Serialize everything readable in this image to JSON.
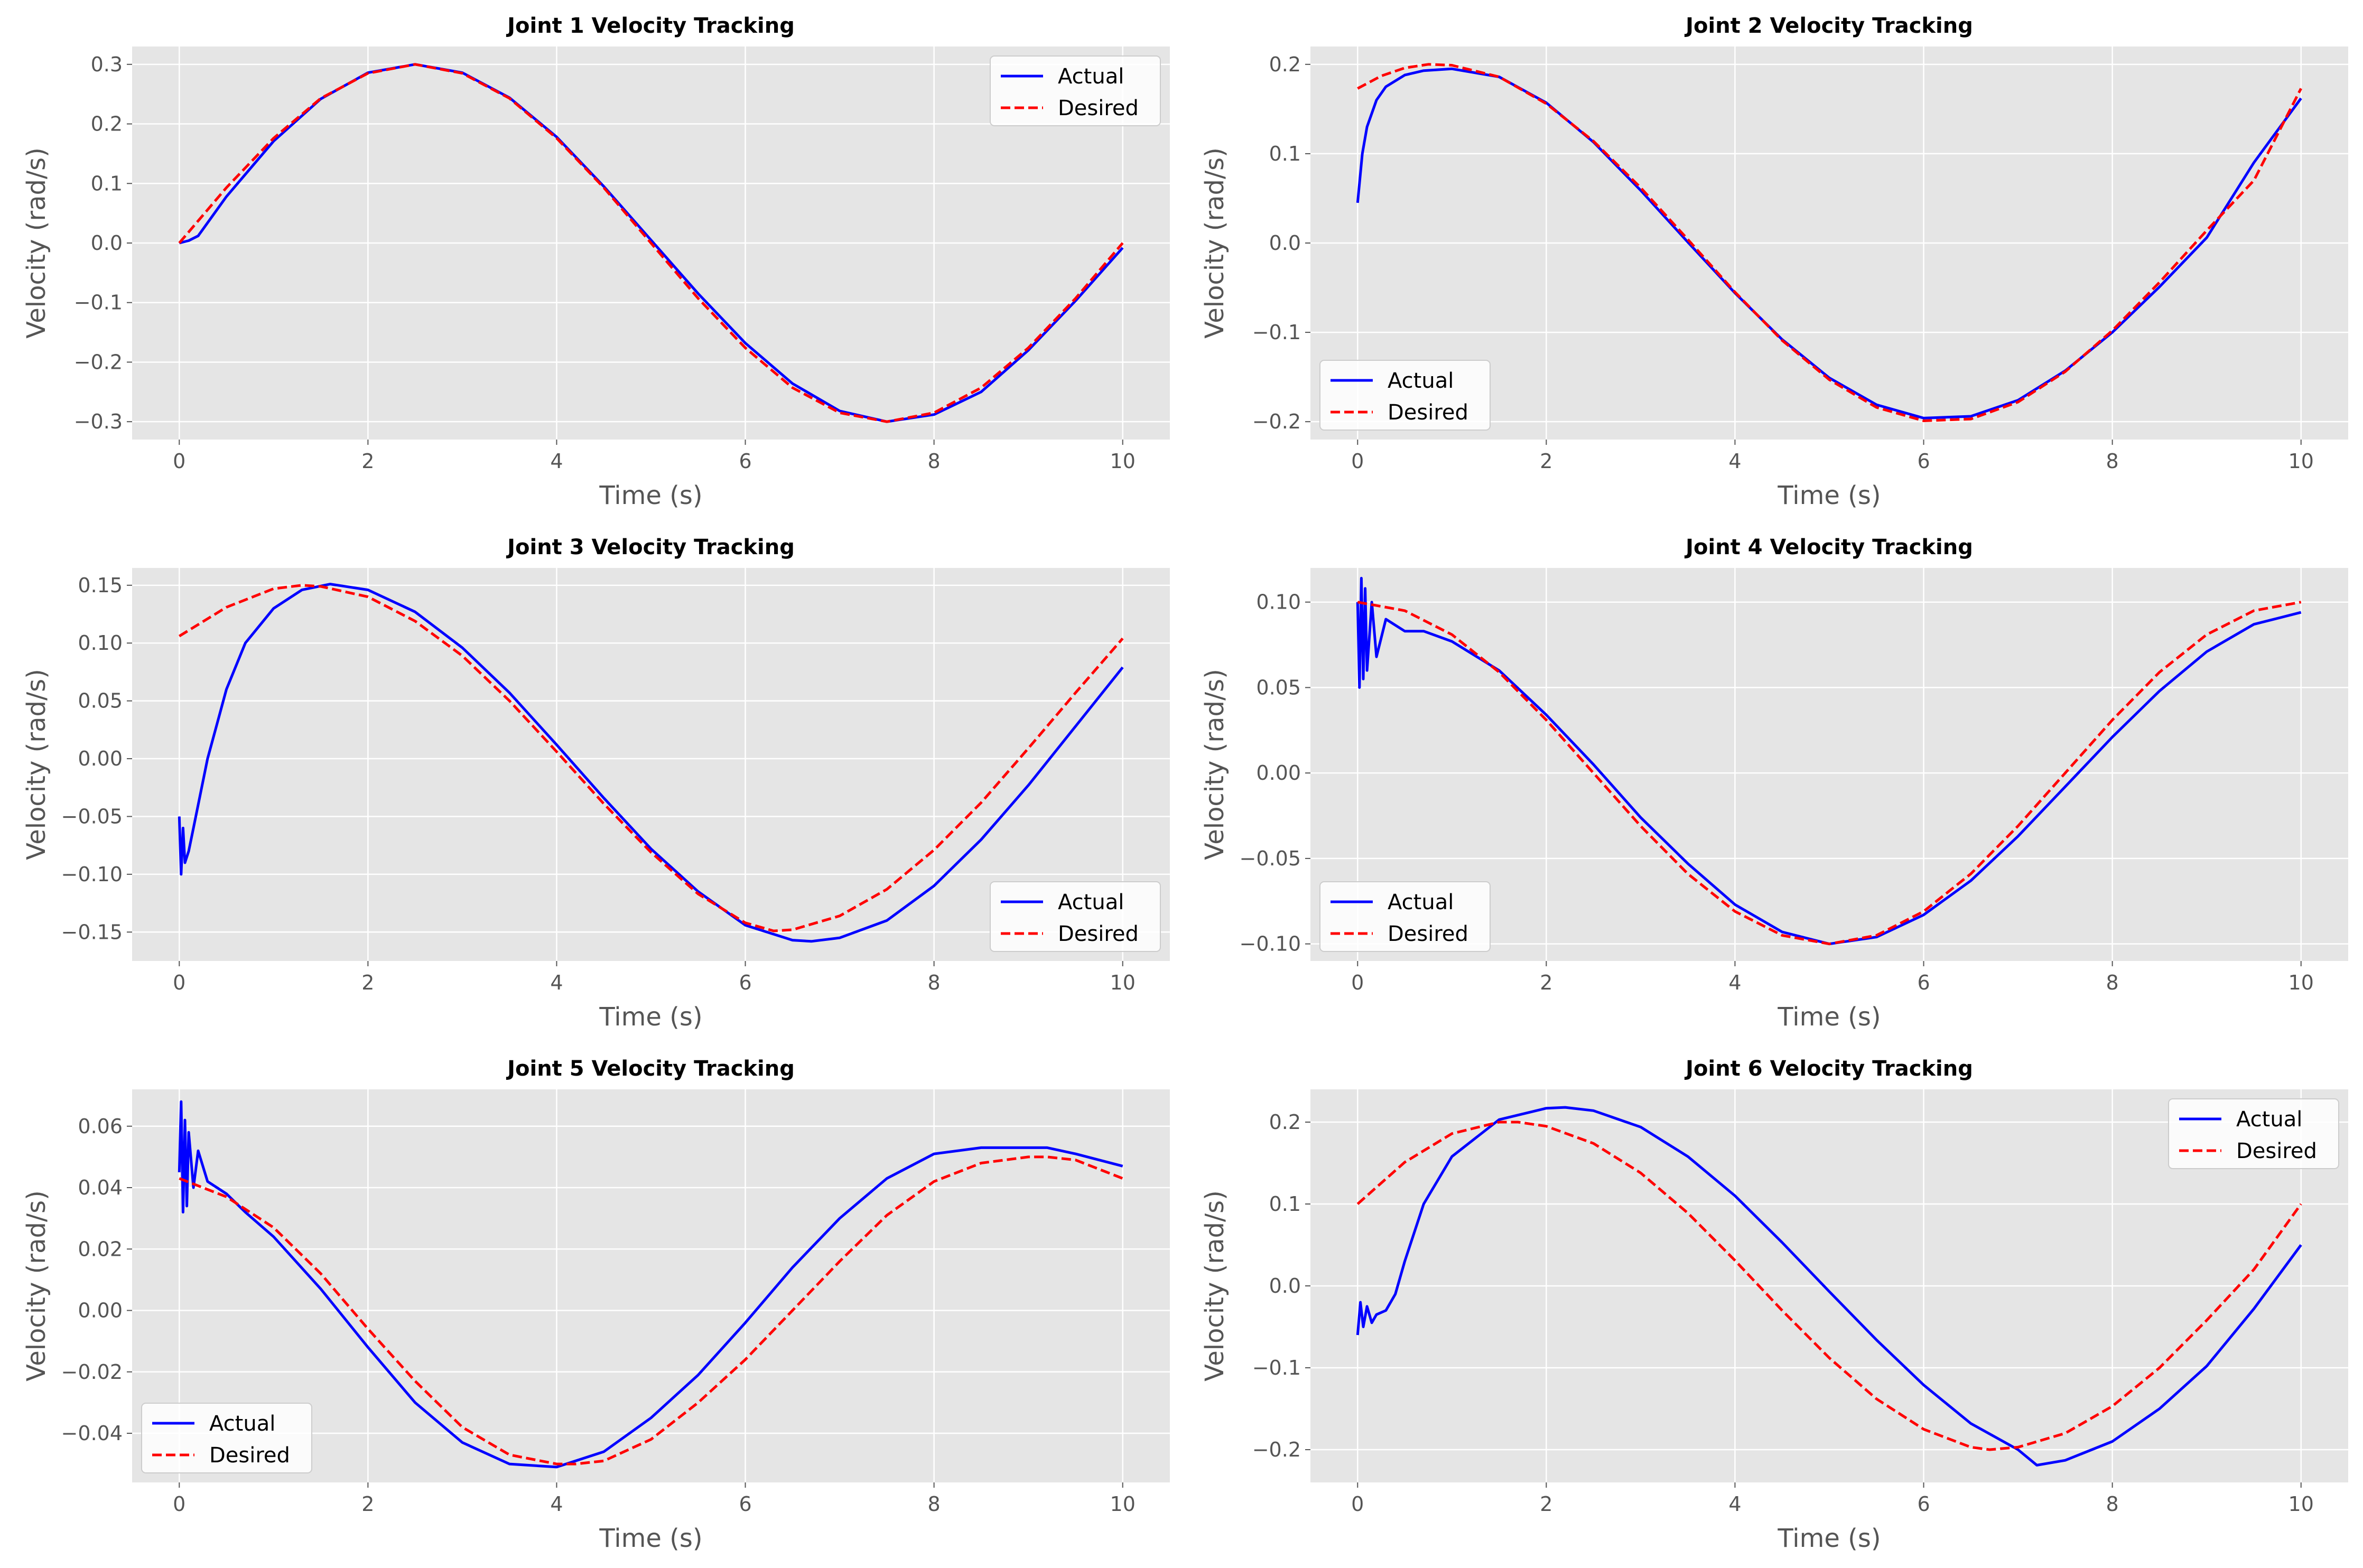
{
  "chart_data": [
    {
      "type": "line",
      "title": "Joint 1 Velocity Tracking",
      "xlabel": "Time (s)",
      "ylabel": "Velocity (rad/s)",
      "xlim": [
        -0.5,
        10.5
      ],
      "ylim": [
        -0.33,
        0.33
      ],
      "xticks": [
        0,
        2,
        4,
        6,
        8,
        10
      ],
      "xtick_labels": [
        "0",
        "2",
        "4",
        "6",
        "8",
        "10"
      ],
      "yticks": [
        -0.3,
        -0.2,
        -0.1,
        0.0,
        0.1,
        0.2,
        0.3
      ],
      "ytick_labels": [
        "−0.3",
        "−0.2",
        "−0.1",
        "0.0",
        "0.1",
        "0.2",
        "0.3"
      ],
      "grid": true,
      "legend": "top-right",
      "series": [
        {
          "name": "Actual",
          "color": "#0000ff",
          "style": "solid",
          "x": [
            0,
            0.1,
            0.2,
            0.5,
            1,
            1.5,
            2,
            2.5,
            3,
            3.5,
            4,
            4.5,
            5,
            5.5,
            6,
            6.5,
            7,
            7.5,
            8,
            8.5,
            9,
            9.5,
            10
          ],
          "y": [
            0.0,
            0.004,
            0.012,
            0.078,
            0.171,
            0.242,
            0.286,
            0.3,
            0.286,
            0.244,
            0.178,
            0.095,
            0.005,
            -0.085,
            -0.168,
            -0.236,
            -0.282,
            -0.3,
            -0.288,
            -0.25,
            -0.18,
            -0.097,
            -0.008
          ]
        },
        {
          "name": "Desired",
          "color": "#ff0000",
          "style": "dashed",
          "x": [
            0,
            0.5,
            1,
            1.5,
            2,
            2.5,
            3,
            3.5,
            4,
            4.5,
            5,
            5.5,
            6,
            6.5,
            7,
            7.5,
            8,
            8.5,
            9,
            9.5,
            10
          ],
          "y": [
            0.0,
            0.093,
            0.176,
            0.243,
            0.285,
            0.3,
            0.285,
            0.243,
            0.176,
            0.093,
            0.0,
            -0.093,
            -0.176,
            -0.243,
            -0.285,
            -0.3,
            -0.285,
            -0.243,
            -0.176,
            -0.093,
            0.0
          ]
        }
      ]
    },
    {
      "type": "line",
      "title": "Joint 2 Velocity Tracking",
      "xlabel": "Time (s)",
      "ylabel": "Velocity (rad/s)",
      "xlim": [
        -0.5,
        10.5
      ],
      "ylim": [
        -0.22,
        0.22
      ],
      "xticks": [
        0,
        2,
        4,
        6,
        8,
        10
      ],
      "xtick_labels": [
        "0",
        "2",
        "4",
        "6",
        "8",
        "10"
      ],
      "yticks": [
        -0.2,
        -0.1,
        0.0,
        0.1,
        0.2
      ],
      "ytick_labels": [
        "−0.2",
        "−0.1",
        "0.0",
        "0.1",
        "0.2"
      ],
      "grid": true,
      "legend": "bottom-left",
      "series": [
        {
          "name": "Actual",
          "color": "#0000ff",
          "style": "solid",
          "x": [
            0,
            0.05,
            0.1,
            0.2,
            0.3,
            0.5,
            0.7,
            1,
            1.5,
            2,
            2.5,
            3,
            3.5,
            4,
            4.5,
            5,
            5.5,
            6,
            6.5,
            7,
            7.5,
            8,
            8.5,
            9,
            9.5,
            10
          ],
          "y": [
            0.045,
            0.1,
            0.13,
            0.16,
            0.175,
            0.188,
            0.193,
            0.195,
            0.186,
            0.157,
            0.113,
            0.059,
            0.001,
            -0.056,
            -0.108,
            -0.151,
            -0.181,
            -0.196,
            -0.194,
            -0.176,
            -0.143,
            -0.1,
            -0.049,
            0.006,
            0.09,
            0.162
          ]
        },
        {
          "name": "Desired",
          "color": "#ff0000",
          "style": "dashed",
          "x": [
            0,
            0.25,
            0.5,
            0.75,
            1,
            1.5,
            2,
            2.5,
            3,
            3.5,
            4,
            4.5,
            5,
            5.5,
            6,
            6.5,
            7,
            7.5,
            8,
            8.5,
            9,
            9.5,
            10
          ],
          "y": [
            0.173,
            0.187,
            0.196,
            0.2,
            0.199,
            0.186,
            0.156,
            0.114,
            0.062,
            0.004,
            -0.055,
            -0.109,
            -0.153,
            -0.184,
            -0.199,
            -0.197,
            -0.178,
            -0.144,
            -0.098,
            -0.044,
            0.014,
            0.07,
            0.173
          ]
        }
      ]
    },
    {
      "type": "line",
      "title": "Joint 3 Velocity Tracking",
      "xlabel": "Time (s)",
      "ylabel": "Velocity (rad/s)",
      "xlim": [
        -0.5,
        10.5
      ],
      "ylim": [
        -0.175,
        0.165
      ],
      "xticks": [
        0,
        2,
        4,
        6,
        8,
        10
      ],
      "xtick_labels": [
        "0",
        "2",
        "4",
        "6",
        "8",
        "10"
      ],
      "yticks": [
        -0.15,
        -0.1,
        -0.05,
        0.0,
        0.05,
        0.1,
        0.15
      ],
      "ytick_labels": [
        "−0.15",
        "−0.10",
        "−0.05",
        "0.00",
        "0.05",
        "0.10",
        "0.15"
      ],
      "grid": true,
      "legend": "bottom-right",
      "series": [
        {
          "name": "Actual",
          "color": "#0000ff",
          "style": "solid",
          "x": [
            0,
            0.02,
            0.04,
            0.06,
            0.1,
            0.15,
            0.2,
            0.3,
            0.4,
            0.5,
            0.7,
            1,
            1.3,
            1.6,
            2,
            2.5,
            3,
            3.5,
            4,
            4.5,
            5,
            5.5,
            6,
            6.5,
            6.7,
            7,
            7.5,
            8,
            8.5,
            9,
            9.5,
            10
          ],
          "y": [
            -0.05,
            -0.1,
            -0.06,
            -0.09,
            -0.08,
            -0.06,
            -0.04,
            0.0,
            0.03,
            0.06,
            0.1,
            0.13,
            0.146,
            0.151,
            0.146,
            0.127,
            0.096,
            0.057,
            0.012,
            -0.034,
            -0.078,
            -0.115,
            -0.144,
            -0.157,
            -0.158,
            -0.155,
            -0.14,
            -0.11,
            -0.07,
            -0.023,
            0.028,
            0.079
          ]
        },
        {
          "name": "Desired",
          "color": "#ff0000",
          "style": "dashed",
          "x": [
            0,
            0.5,
            1,
            1.3,
            1.5,
            2,
            2.5,
            3,
            3.5,
            4,
            4.5,
            5,
            5.5,
            6,
            6.3,
            6.5,
            7,
            7.5,
            8,
            8.5,
            9,
            9.5,
            10
          ],
          "y": [
            0.106,
            0.131,
            0.147,
            0.15,
            0.149,
            0.14,
            0.119,
            0.089,
            0.05,
            0.006,
            -0.039,
            -0.081,
            -0.117,
            -0.142,
            -0.149,
            -0.148,
            -0.136,
            -0.113,
            -0.079,
            -0.038,
            0.009,
            0.057,
            0.104
          ]
        }
      ]
    },
    {
      "type": "line",
      "title": "Joint 4 Velocity Tracking",
      "xlabel": "Time (s)",
      "ylabel": "Velocity (rad/s)",
      "xlim": [
        -0.5,
        10.5
      ],
      "ylim": [
        -0.11,
        0.12
      ],
      "xticks": [
        0,
        2,
        4,
        6,
        8,
        10
      ],
      "xtick_labels": [
        "0",
        "2",
        "4",
        "6",
        "8",
        "10"
      ],
      "yticks": [
        -0.1,
        -0.05,
        0.0,
        0.05,
        0.1
      ],
      "ytick_labels": [
        "−0.10",
        "−0.05",
        "0.00",
        "0.05",
        "0.10"
      ],
      "grid": true,
      "legend": "bottom-left",
      "series": [
        {
          "name": "Actual",
          "color": "#0000ff",
          "style": "solid",
          "x": [
            0,
            0.02,
            0.04,
            0.06,
            0.08,
            0.1,
            0.15,
            0.2,
            0.3,
            0.5,
            0.7,
            1,
            1.5,
            2,
            2.5,
            3,
            3.5,
            4,
            4.5,
            5,
            5.5,
            6,
            6.5,
            7,
            7.5,
            8,
            8.5,
            9,
            9.5,
            10
          ],
          "y": [
            0.1,
            0.05,
            0.114,
            0.055,
            0.108,
            0.06,
            0.1,
            0.068,
            0.09,
            0.083,
            0.083,
            0.077,
            0.06,
            0.034,
            0.005,
            -0.026,
            -0.053,
            -0.077,
            -0.093,
            -0.1,
            -0.096,
            -0.083,
            -0.063,
            -0.037,
            -0.008,
            0.021,
            0.048,
            0.071,
            0.087,
            0.094
          ]
        },
        {
          "name": "Desired",
          "color": "#ff0000",
          "style": "dashed",
          "x": [
            0,
            0.5,
            1,
            1.5,
            2,
            2.5,
            3,
            3.5,
            4,
            4.5,
            5,
            5.5,
            6,
            6.5,
            7,
            7.5,
            8,
            8.5,
            9,
            9.5,
            10
          ],
          "y": [
            0.1,
            0.095,
            0.081,
            0.059,
            0.031,
            0.0,
            -0.031,
            -0.059,
            -0.081,
            -0.095,
            -0.1,
            -0.095,
            -0.081,
            -0.059,
            -0.031,
            0.0,
            0.031,
            0.059,
            0.081,
            0.095,
            0.1
          ]
        }
      ]
    },
    {
      "type": "line",
      "title": "Joint 5 Velocity Tracking",
      "xlabel": "Time (s)",
      "ylabel": "Velocity (rad/s)",
      "xlim": [
        -0.5,
        10.5
      ],
      "ylim": [
        -0.056,
        0.072
      ],
      "xticks": [
        0,
        2,
        4,
        6,
        8,
        10
      ],
      "xtick_labels": [
        "0",
        "2",
        "4",
        "6",
        "8",
        "10"
      ],
      "yticks": [
        -0.04,
        -0.02,
        0.0,
        0.02,
        0.04,
        0.06
      ],
      "ytick_labels": [
        "−0.04",
        "−0.02",
        "0.00",
        "0.02",
        "0.04",
        "0.06"
      ],
      "grid": true,
      "legend": "bottom-left",
      "series": [
        {
          "name": "Actual",
          "color": "#0000ff",
          "style": "solid",
          "x": [
            0,
            0.02,
            0.04,
            0.06,
            0.08,
            0.1,
            0.15,
            0.2,
            0.3,
            0.5,
            0.7,
            1,
            1.5,
            2,
            2.5,
            3,
            3.5,
            4,
            4.5,
            5,
            5.5,
            6,
            6.5,
            7,
            7.5,
            8,
            8.5,
            9,
            9.2,
            9.5,
            10
          ],
          "y": [
            0.045,
            0.068,
            0.032,
            0.062,
            0.034,
            0.058,
            0.04,
            0.052,
            0.042,
            0.038,
            0.032,
            0.024,
            0.007,
            -0.012,
            -0.03,
            -0.043,
            -0.05,
            -0.051,
            -0.046,
            -0.035,
            -0.021,
            -0.004,
            0.014,
            0.03,
            0.043,
            0.051,
            0.053,
            0.053,
            0.053,
            0.051,
            0.047
          ]
        },
        {
          "name": "Desired",
          "color": "#ff0000",
          "style": "dashed",
          "x": [
            0,
            0.5,
            1,
            1.5,
            2,
            2.5,
            3,
            3.5,
            4,
            4.2,
            4.5,
            5,
            5.5,
            6,
            6.5,
            7,
            7.5,
            8,
            8.5,
            9,
            9.2,
            9.5,
            10
          ],
          "y": [
            0.043,
            0.037,
            0.027,
            0.012,
            -0.006,
            -0.023,
            -0.038,
            -0.047,
            -0.05,
            -0.05,
            -0.049,
            -0.042,
            -0.03,
            -0.016,
            0.0,
            0.016,
            0.031,
            0.042,
            0.048,
            0.05,
            0.05,
            0.049,
            0.043
          ]
        }
      ]
    },
    {
      "type": "line",
      "title": "Joint 6 Velocity Tracking",
      "xlabel": "Time (s)",
      "ylabel": "Velocity (rad/s)",
      "xlim": [
        -0.5,
        10.5
      ],
      "ylim": [
        -0.24,
        0.24
      ],
      "xticks": [
        0,
        2,
        4,
        6,
        8,
        10
      ],
      "xtick_labels": [
        "0",
        "2",
        "4",
        "6",
        "8",
        "10"
      ],
      "yticks": [
        -0.2,
        -0.1,
        0.0,
        0.1,
        0.2
      ],
      "ytick_labels": [
        "−0.2",
        "−0.1",
        "0.0",
        "0.1",
        "0.2"
      ],
      "grid": true,
      "legend": "top-right",
      "series": [
        {
          "name": "Actual",
          "color": "#0000ff",
          "style": "solid",
          "x": [
            0,
            0.03,
            0.06,
            0.1,
            0.15,
            0.2,
            0.3,
            0.4,
            0.5,
            0.7,
            1,
            1.5,
            2,
            2.2,
            2.5,
            3,
            3.5,
            4,
            4.5,
            5,
            5.5,
            6,
            6.5,
            7,
            7.2,
            7.5,
            8,
            8.5,
            9,
            9.5,
            10
          ],
          "y": [
            -0.06,
            -0.02,
            -0.05,
            -0.025,
            -0.045,
            -0.035,
            -0.03,
            -0.01,
            0.03,
            0.1,
            0.158,
            0.203,
            0.217,
            0.218,
            0.214,
            0.194,
            0.158,
            0.11,
            0.053,
            -0.007,
            -0.066,
            -0.121,
            -0.168,
            -0.2,
            -0.219,
            -0.213,
            -0.19,
            -0.15,
            -0.098,
            -0.028,
            0.05
          ]
        },
        {
          "name": "Desired",
          "color": "#ff0000",
          "style": "dashed",
          "x": [
            0,
            0.5,
            1,
            1.5,
            1.7,
            2,
            2.5,
            3,
            3.5,
            4,
            4.5,
            5,
            5.5,
            6,
            6.5,
            6.7,
            7,
            7.5,
            8,
            8.5,
            9,
            9.5,
            10
          ],
          "y": [
            0.1,
            0.151,
            0.186,
            0.2,
            0.2,
            0.195,
            0.174,
            0.138,
            0.089,
            0.031,
            -0.03,
            -0.088,
            -0.138,
            -0.175,
            -0.197,
            -0.2,
            -0.197,
            -0.18,
            -0.147,
            -0.1,
            -0.042,
            0.02,
            0.1
          ]
        }
      ]
    }
  ]
}
